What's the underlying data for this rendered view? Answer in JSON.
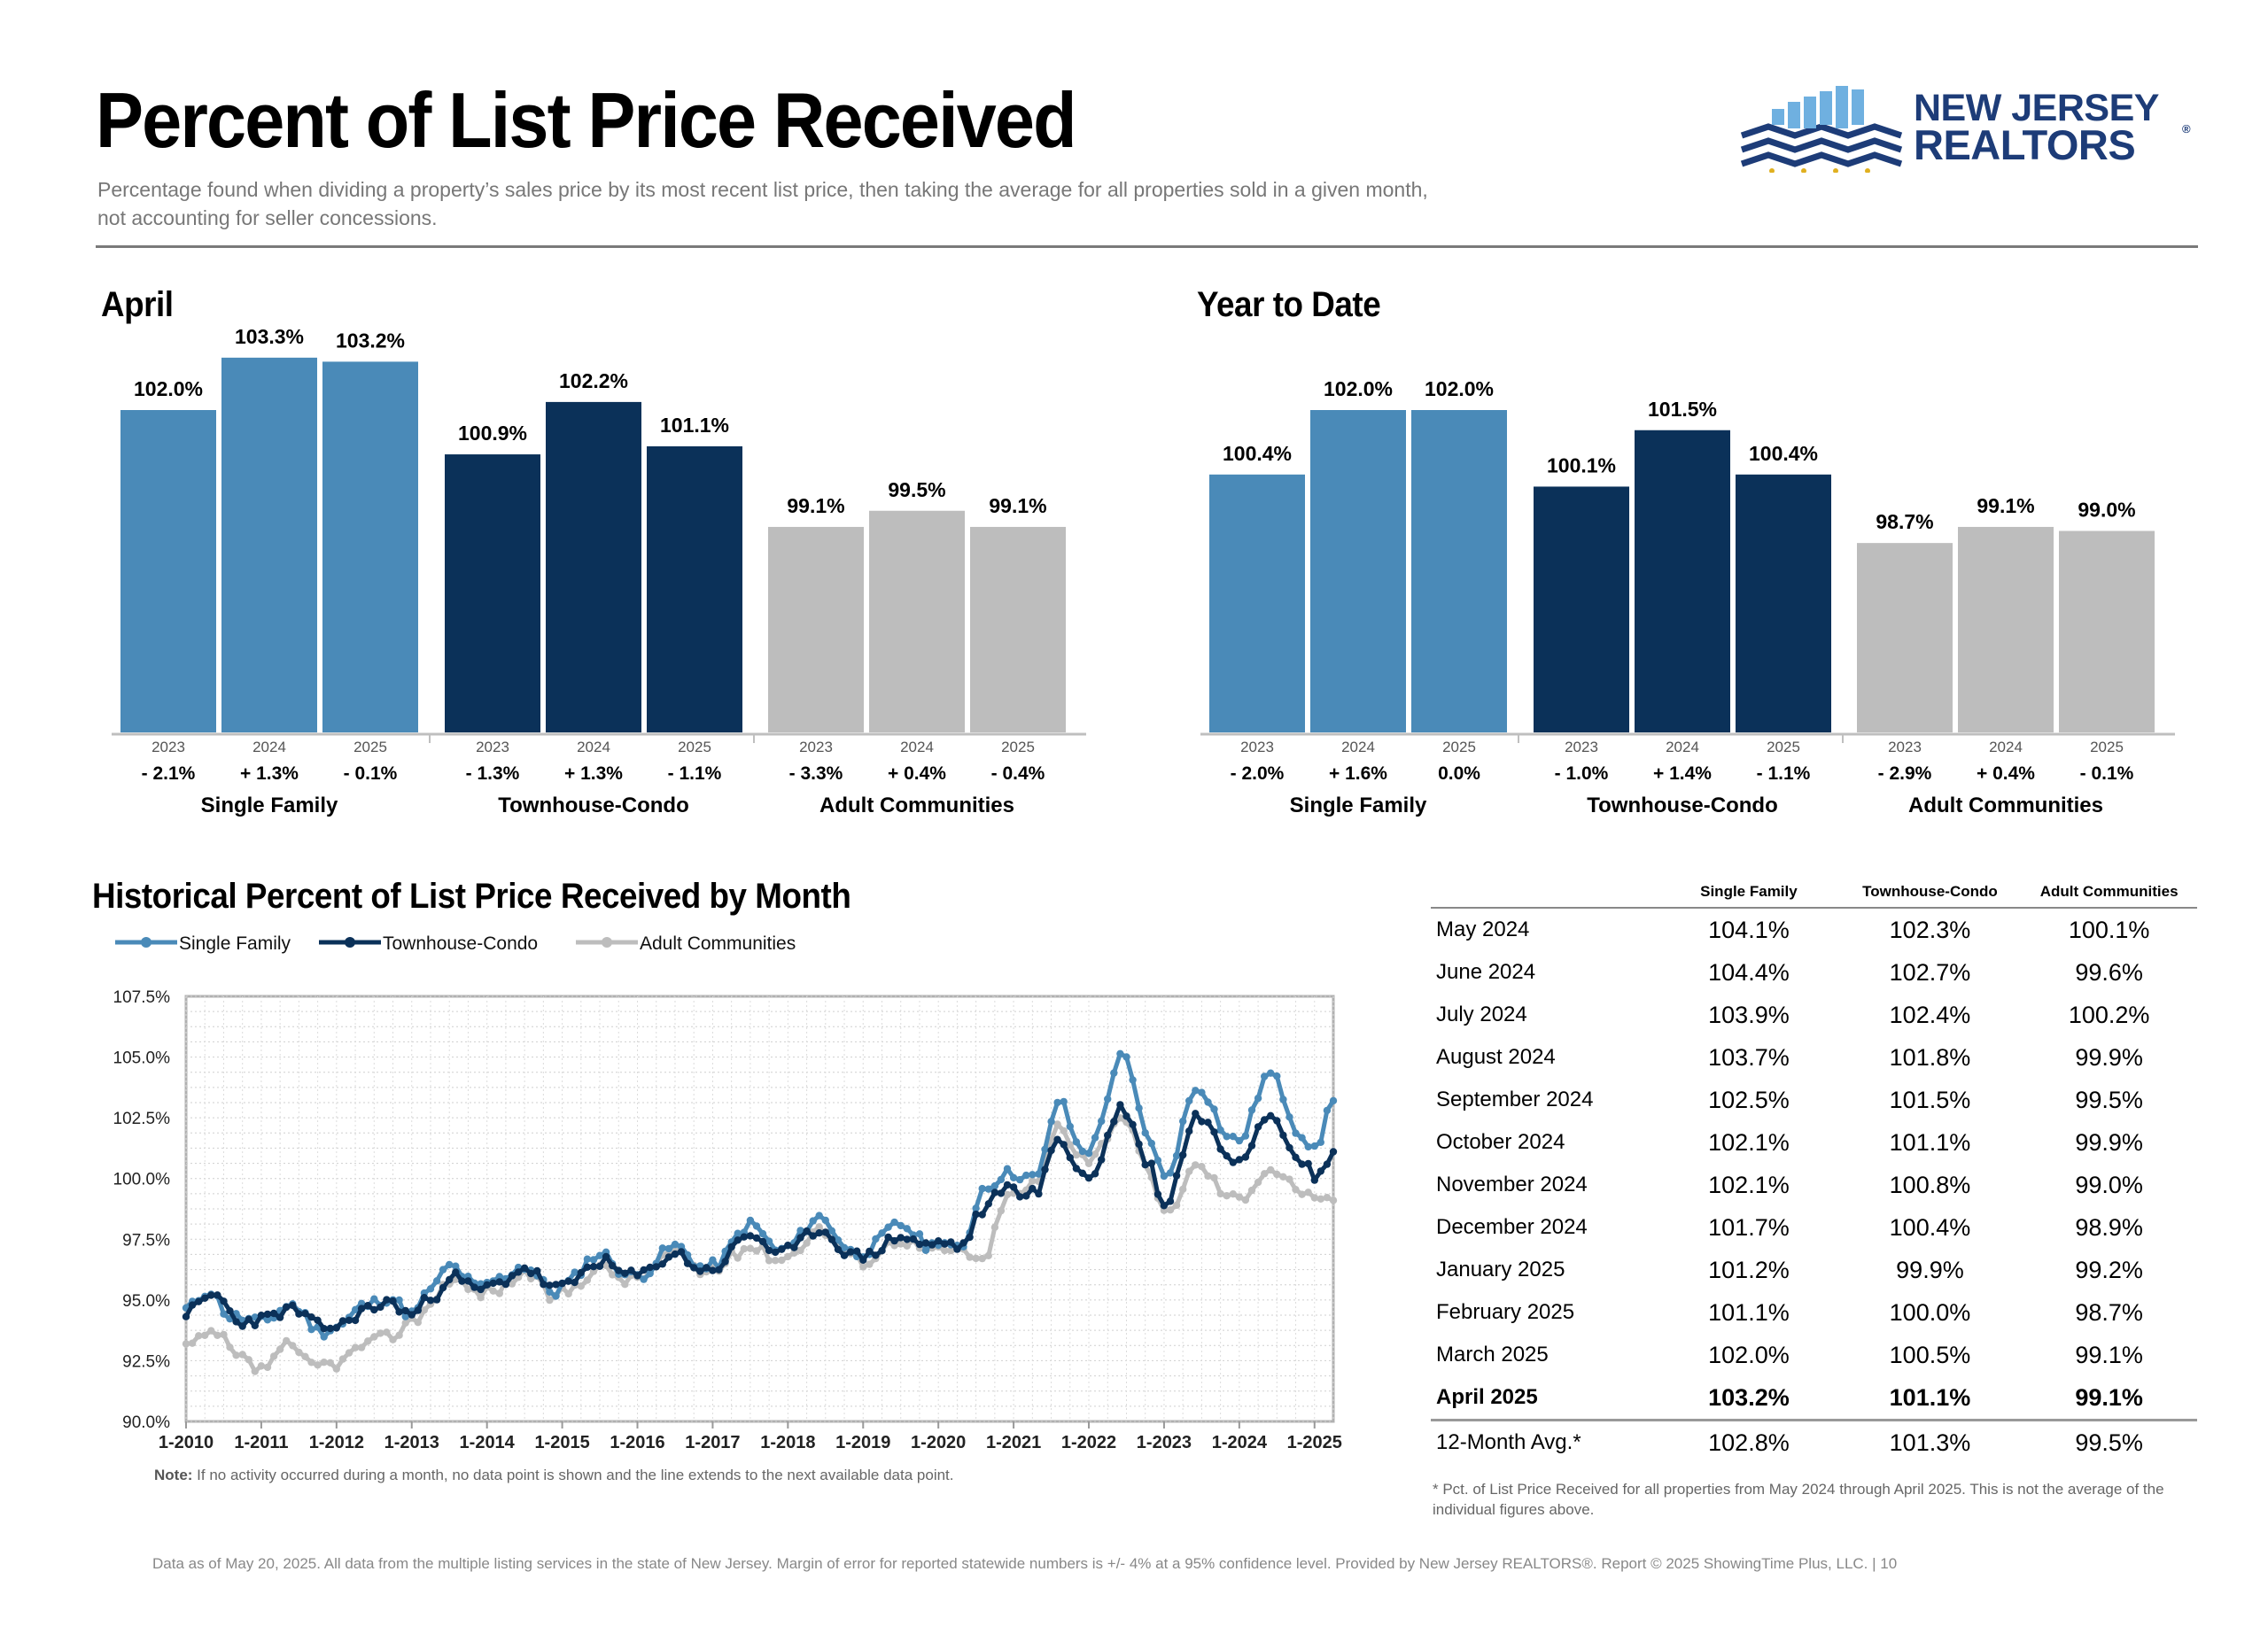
{
  "header": {
    "title": "Percent of List Price Received",
    "subtitle": "Percentage found when dividing a property’s sales price by its most recent list price, then taking the average for all properties sold in a given month, not accounting for seller concessions."
  },
  "logo": {
    "line1": "NEW JERSEY",
    "line2": "REALTORS",
    "mark": "®"
  },
  "colors": {
    "single_family": "#4a8ab8",
    "townhouse_condo": "#0b3159",
    "adult_communities": "#bdbdbd"
  },
  "chart_data": [
    {
      "type": "bar",
      "title": "April",
      "groups": [
        {
          "name": "Single Family",
          "years": [
            "2023",
            "2024",
            "2025"
          ],
          "values": [
            102.0,
            103.3,
            103.2
          ],
          "labels": [
            "102.0%",
            "103.3%",
            "103.2%"
          ],
          "changes": [
            "- 2.1%",
            "+ 1.3%",
            "- 0.1%"
          ]
        },
        {
          "name": "Townhouse-Condo",
          "years": [
            "2023",
            "2024",
            "2025"
          ],
          "values": [
            100.9,
            102.2,
            101.1
          ],
          "labels": [
            "100.9%",
            "102.2%",
            "101.1%"
          ],
          "changes": [
            "- 1.3%",
            "+ 1.3%",
            "- 1.1%"
          ]
        },
        {
          "name": "Adult Communities",
          "years": [
            "2023",
            "2024",
            "2025"
          ],
          "values": [
            99.1,
            99.5,
            99.1
          ],
          "labels": [
            "99.1%",
            "99.5%",
            "99.1%"
          ],
          "changes": [
            "- 3.3%",
            "+ 0.4%",
            "- 0.4%"
          ]
        }
      ]
    },
    {
      "type": "bar",
      "title": "Year to Date",
      "groups": [
        {
          "name": "Single Family",
          "years": [
            "2023",
            "2024",
            "2025"
          ],
          "values": [
            100.4,
            102.0,
            102.0
          ],
          "labels": [
            "100.4%",
            "102.0%",
            "102.0%"
          ],
          "changes": [
            "- 2.0%",
            "+ 1.6%",
            "0.0%"
          ]
        },
        {
          "name": "Townhouse-Condo",
          "years": [
            "2023",
            "2024",
            "2025"
          ],
          "values": [
            100.1,
            101.5,
            100.4
          ],
          "labels": [
            "100.1%",
            "101.5%",
            "100.4%"
          ],
          "changes": [
            "- 1.0%",
            "+ 1.4%",
            "- 1.1%"
          ]
        },
        {
          "name": "Adult Communities",
          "years": [
            "2023",
            "2024",
            "2025"
          ],
          "values": [
            98.7,
            99.1,
            99.0
          ],
          "labels": [
            "98.7%",
            "99.1%",
            "99.0%"
          ],
          "changes": [
            "- 2.9%",
            "+ 0.4%",
            "- 0.1%"
          ]
        }
      ]
    },
    {
      "type": "line",
      "title": "Historical Percent of List Price Received by Month",
      "y_ticks": [
        "90.0%",
        "92.5%",
        "95.0%",
        "97.5%",
        "100.0%",
        "102.5%",
        "105.0%",
        "107.5%"
      ],
      "ylim": [
        90.0,
        107.5
      ],
      "x_ticks": [
        "1-2010",
        "1-2011",
        "1-2012",
        "1-2013",
        "1-2014",
        "1-2015",
        "1-2016",
        "1-2017",
        "1-2018",
        "1-2019",
        "1-2020",
        "1-2021",
        "1-2022",
        "1-2023",
        "1-2024",
        "1-2025"
      ],
      "x_start": "2010-01",
      "x_end": "2025-04",
      "grid": true,
      "legend_position": "top",
      "series": [
        {
          "name": "Single Family",
          "anchors": [
            [
              2010.0,
              94.6
            ],
            [
              2010.3,
              95.4
            ],
            [
              2010.6,
              94.3
            ],
            [
              2011.0,
              94.1
            ],
            [
              2011.4,
              94.8
            ],
            [
              2011.8,
              93.7
            ],
            [
              2012.0,
              93.9
            ],
            [
              2012.4,
              94.8
            ],
            [
              2012.7,
              95.1
            ],
            [
              2013.0,
              94.4
            ],
            [
              2013.3,
              95.6
            ],
            [
              2013.5,
              96.4
            ],
            [
              2013.9,
              95.5
            ],
            [
              2014.1,
              95.8
            ],
            [
              2014.5,
              96.4
            ],
            [
              2014.9,
              95.3
            ],
            [
              2015.0,
              95.6
            ],
            [
              2015.5,
              96.9
            ],
            [
              2015.9,
              96.0
            ],
            [
              2016.0,
              96.0
            ],
            [
              2016.5,
              97.2
            ],
            [
              2016.9,
              96.3
            ],
            [
              2017.0,
              96.4
            ],
            [
              2017.5,
              98.1
            ],
            [
              2017.9,
              97.0
            ],
            [
              2018.0,
              97.2
            ],
            [
              2018.4,
              98.4
            ],
            [
              2018.9,
              96.9
            ],
            [
              2019.0,
              97.0
            ],
            [
              2019.5,
              98.1
            ],
            [
              2019.9,
              97.2
            ],
            [
              2020.0,
              97.5
            ],
            [
              2020.3,
              97.0
            ],
            [
              2020.6,
              99.6
            ],
            [
              2020.9,
              100.2
            ],
            [
              2021.0,
              100.2
            ],
            [
              2021.3,
              100.0
            ],
            [
              2021.6,
              103.2
            ],
            [
              2021.9,
              101.2
            ],
            [
              2022.0,
              101.2
            ],
            [
              2022.45,
              105.0
            ],
            [
              2022.8,
              101.7
            ],
            [
              2023.0,
              100.0
            ],
            [
              2023.45,
              103.8
            ],
            [
              2023.9,
              101.6
            ],
            [
              2024.0,
              101.6
            ],
            [
              2024.4,
              104.3
            ],
            [
              2024.85,
              101.8
            ],
            [
              2025.0,
              101.1
            ],
            [
              2025.25,
              103.2
            ]
          ]
        },
        {
          "name": "Townhouse-Condo",
          "anchors": [
            [
              2010.0,
              94.5
            ],
            [
              2010.4,
              95.2
            ],
            [
              2010.7,
              94.1
            ],
            [
              2011.0,
              94.2
            ],
            [
              2011.4,
              94.6
            ],
            [
              2011.8,
              93.9
            ],
            [
              2012.0,
              93.9
            ],
            [
              2012.4,
              94.6
            ],
            [
              2012.7,
              94.9
            ],
            [
              2013.0,
              94.4
            ],
            [
              2013.3,
              95.2
            ],
            [
              2013.5,
              96.0
            ],
            [
              2013.9,
              95.4
            ],
            [
              2014.1,
              95.6
            ],
            [
              2014.5,
              96.3
            ],
            [
              2014.9,
              95.5
            ],
            [
              2015.0,
              95.5
            ],
            [
              2015.5,
              96.6
            ],
            [
              2015.9,
              96.0
            ],
            [
              2016.0,
              96.0
            ],
            [
              2016.5,
              96.9
            ],
            [
              2016.9,
              96.2
            ],
            [
              2017.0,
              96.3
            ],
            [
              2017.5,
              97.7
            ],
            [
              2017.9,
              96.9
            ],
            [
              2018.0,
              97.0
            ],
            [
              2018.4,
              97.9
            ],
            [
              2018.9,
              96.8
            ],
            [
              2019.0,
              96.8
            ],
            [
              2019.5,
              97.6
            ],
            [
              2019.9,
              97.2
            ],
            [
              2020.0,
              97.4
            ],
            [
              2020.3,
              97.2
            ],
            [
              2020.6,
              98.7
            ],
            [
              2020.9,
              99.7
            ],
            [
              2021.0,
              99.5
            ],
            [
              2021.3,
              99.4
            ],
            [
              2021.6,
              101.7
            ],
            [
              2021.9,
              100.2
            ],
            [
              2022.0,
              100.0
            ],
            [
              2022.45,
              102.9
            ],
            [
              2022.8,
              100.6
            ],
            [
              2023.0,
              98.9
            ],
            [
              2023.45,
              102.6
            ],
            [
              2023.9,
              100.9
            ],
            [
              2024.0,
              100.9
            ],
            [
              2024.4,
              102.7
            ],
            [
              2024.85,
              100.8
            ],
            [
              2025.0,
              99.9
            ],
            [
              2025.25,
              101.1
            ]
          ]
        },
        {
          "name": "Adult Communities",
          "anchors": [
            [
              2010.0,
              93.1
            ],
            [
              2010.4,
              93.6
            ],
            [
              2010.7,
              92.6
            ],
            [
              2011.0,
              92.1
            ],
            [
              2011.3,
              93.1
            ],
            [
              2011.7,
              92.3
            ],
            [
              2012.0,
              92.4
            ],
            [
              2012.4,
              93.2
            ],
            [
              2012.7,
              93.5
            ],
            [
              2013.0,
              94.1
            ],
            [
              2013.3,
              95.0
            ],
            [
              2013.5,
              95.9
            ],
            [
              2013.9,
              95.3
            ],
            [
              2014.1,
              95.4
            ],
            [
              2014.5,
              96.1
            ],
            [
              2014.9,
              95.1
            ],
            [
              2015.0,
              95.3
            ],
            [
              2015.5,
              96.3
            ],
            [
              2015.9,
              95.8
            ],
            [
              2016.0,
              95.9
            ],
            [
              2016.5,
              97.0
            ],
            [
              2016.9,
              96.1
            ],
            [
              2017.0,
              96.3
            ],
            [
              2017.5,
              97.2
            ],
            [
              2017.9,
              96.7
            ],
            [
              2018.0,
              96.8
            ],
            [
              2018.4,
              97.9
            ],
            [
              2018.9,
              96.7
            ],
            [
              2019.0,
              96.6
            ],
            [
              2019.5,
              97.5
            ],
            [
              2019.9,
              97.0
            ],
            [
              2020.0,
              97.0
            ],
            [
              2020.3,
              97.1
            ],
            [
              2020.6,
              96.5
            ],
            [
              2020.9,
              99.2
            ],
            [
              2021.0,
              99.3
            ],
            [
              2021.3,
              99.8
            ],
            [
              2021.6,
              102.2
            ],
            [
              2021.9,
              101.0
            ],
            [
              2022.0,
              100.8
            ],
            [
              2022.45,
              102.6
            ],
            [
              2022.8,
              100.2
            ],
            [
              2023.0,
              98.5
            ],
            [
              2023.45,
              100.5
            ],
            [
              2023.9,
              99.2
            ],
            [
              2024.0,
              99.2
            ],
            [
              2024.4,
              100.4
            ],
            [
              2024.85,
              99.5
            ],
            [
              2025.0,
              99.0
            ],
            [
              2025.25,
              99.1
            ]
          ]
        }
      ]
    },
    {
      "type": "table",
      "columns": [
        "",
        "Single Family",
        "Townhouse-Condo",
        "Adult Communities"
      ],
      "rows": [
        {
          "label": "May 2024",
          "values": [
            "104.1%",
            "102.3%",
            "100.1%"
          ]
        },
        {
          "label": "June 2024",
          "values": [
            "104.4%",
            "102.7%",
            "99.6%"
          ]
        },
        {
          "label": "July 2024",
          "values": [
            "103.9%",
            "102.4%",
            "100.2%"
          ]
        },
        {
          "label": "August 2024",
          "values": [
            "103.7%",
            "101.8%",
            "99.9%"
          ]
        },
        {
          "label": "September 2024",
          "values": [
            "102.5%",
            "101.5%",
            "99.5%"
          ]
        },
        {
          "label": "October 2024",
          "values": [
            "102.1%",
            "101.1%",
            "99.9%"
          ]
        },
        {
          "label": "November 2024",
          "values": [
            "102.1%",
            "100.8%",
            "99.0%"
          ]
        },
        {
          "label": "December 2024",
          "values": [
            "101.7%",
            "100.4%",
            "98.9%"
          ]
        },
        {
          "label": "January 2025",
          "values": [
            "101.2%",
            "99.9%",
            "99.2%"
          ]
        },
        {
          "label": "February 2025",
          "values": [
            "101.1%",
            "100.0%",
            "98.7%"
          ]
        },
        {
          "label": "March 2025",
          "values": [
            "102.0%",
            "100.5%",
            "99.1%"
          ]
        },
        {
          "label": "April 2025",
          "values": [
            "103.2%",
            "101.1%",
            "99.1%"
          ],
          "bold": true
        },
        {
          "label": "12-Month Avg.*",
          "values": [
            "102.8%",
            "101.3%",
            "99.5%"
          ]
        }
      ],
      "footnote": "* Pct. of List Price Received for all properties from May 2024 through April 2025. This is not the average of the individual figures above."
    }
  ],
  "notes": {
    "chart_note_label": "Note:",
    "chart_note_text": " If no activity occurred during a month, no data point is shown and the line extends to the next available data point."
  },
  "footer": "Data as of May 20, 2025. All data from the multiple listing services in the state of New Jersey. Margin of error for reported statewide numbers is +/- 4% at a 95% confidence level. Provided by New Jersey REALTORS®. Report © 2025 ShowingTime Plus, LLC. |  10"
}
